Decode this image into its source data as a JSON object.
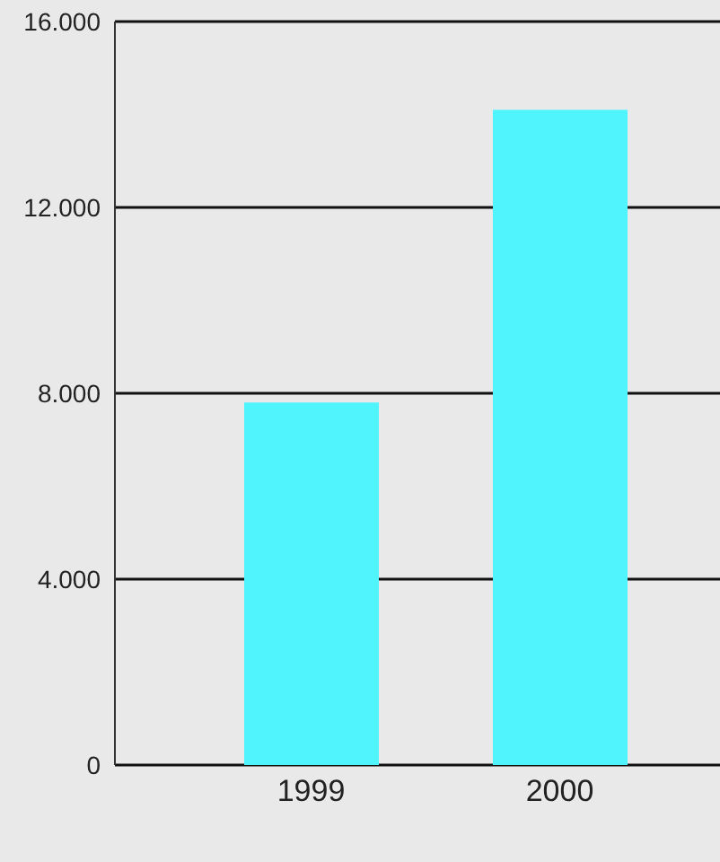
{
  "chart_data": {
    "type": "bar",
    "categories": [
      "1999",
      "2000"
    ],
    "values": [
      7800,
      14100
    ],
    "color": "#4ff4fc",
    "ylim": [
      0,
      16000
    ],
    "yticks": [
      {
        "value": 0,
        "label": "0"
      },
      {
        "value": 4000,
        "label": "4.000"
      },
      {
        "value": 8000,
        "label": "8.000"
      },
      {
        "value": 12000,
        "label": "12.000"
      },
      {
        "value": 16000,
        "label": "16.000"
      }
    ],
    "grid": "y"
  }
}
